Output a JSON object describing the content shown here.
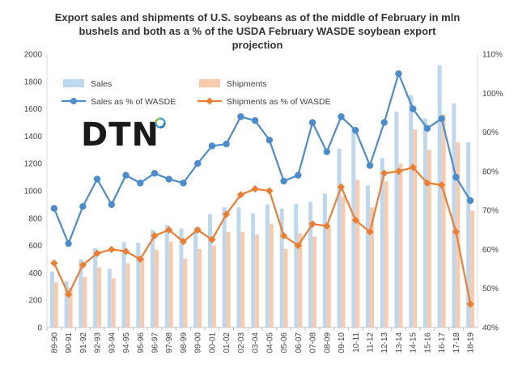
{
  "chart_data": {
    "type": "bar",
    "title": [
      "Export sales and shipments of U.S. soybeans as of the middle of February in mln",
      "bushels and both as a % of the USDA February WASDE soybean export",
      "projection"
    ],
    "categories": [
      "89-90",
      "90-91",
      "91-92",
      "92-93",
      "93-94",
      "94-95",
      "95-96",
      "96-97",
      "97-98",
      "98-99",
      "99-00",
      "00-01",
      "01-02",
      "02-03",
      "03-04",
      "04-05",
      "05-06",
      "06-07",
      "07-08",
      "08-09",
      "09-10",
      "10-11",
      "11-12",
      "12-13",
      "13-14",
      "14-15",
      "15-16",
      "16-17",
      "17-18",
      "18-19"
    ],
    "left_axis": {
      "min": 0,
      "max": 2000,
      "ticks": [
        "0",
        "200",
        "400",
        "600",
        "800",
        "1000",
        "1200",
        "1400",
        "1600",
        "1800",
        "2000"
      ]
    },
    "right_axis": {
      "min": 40,
      "max": 110,
      "ticks": [
        "40%",
        "50%",
        "60%",
        "70%",
        "80%",
        "90%",
        "100%",
        "110%"
      ]
    },
    "series": [
      {
        "name": "Sales",
        "kind": "bar",
        "axis": "left",
        "color": "#bdd7ee",
        "values": [
          410,
          340,
          500,
          580,
          430,
          625,
          620,
          715,
          750,
          725,
          730,
          830,
          880,
          880,
          835,
          900,
          870,
          905,
          920,
          980,
          1310,
          1460,
          1040,
          1240,
          1580,
          1700,
          1530,
          1920,
          1640,
          1355
        ]
      },
      {
        "name": "Shipments",
        "kind": "bar",
        "axis": "left",
        "color": "#f8cbad",
        "values": [
          330,
          290,
          370,
          440,
          360,
          470,
          510,
          570,
          630,
          505,
          575,
          600,
          700,
          700,
          680,
          760,
          575,
          690,
          665,
          745,
          960,
          1080,
          880,
          1070,
          1200,
          1450,
          1300,
          1560,
          1355,
          855
        ]
      },
      {
        "name": "Sales as % of WASDE",
        "kind": "line",
        "axis": "right",
        "color": "#4a8ccc",
        "marker": "circle",
        "values": [
          70.5,
          61.5,
          71,
          78,
          71.5,
          79,
          77,
          79.5,
          78,
          77,
          82,
          86.5,
          87,
          94,
          93,
          88,
          77.5,
          79,
          92.5,
          85,
          94,
          90.5,
          81.5,
          92.5,
          105,
          96,
          91,
          93.5,
          78.5,
          72.5
        ]
      },
      {
        "name": "Shipments as % of WASDE",
        "kind": "line",
        "axis": "right",
        "color": "#ed7d31",
        "marker": "diamond",
        "values": [
          56.5,
          48.5,
          56,
          59,
          60,
          59.5,
          57.5,
          63.5,
          65,
          62,
          65,
          62.5,
          69,
          74,
          75.5,
          75,
          63.5,
          61,
          66.5,
          66,
          76,
          67.5,
          64.5,
          79.5,
          80,
          81,
          77,
          76.5,
          64.5,
          46
        ]
      }
    ],
    "legend": {
      "placement": "top-left",
      "items": [
        "Sales",
        "Shipments",
        "Sales as % of WASDE",
        "Shipments as % of WASDE"
      ]
    },
    "grid": false,
    "logo_text": "DTN"
  }
}
